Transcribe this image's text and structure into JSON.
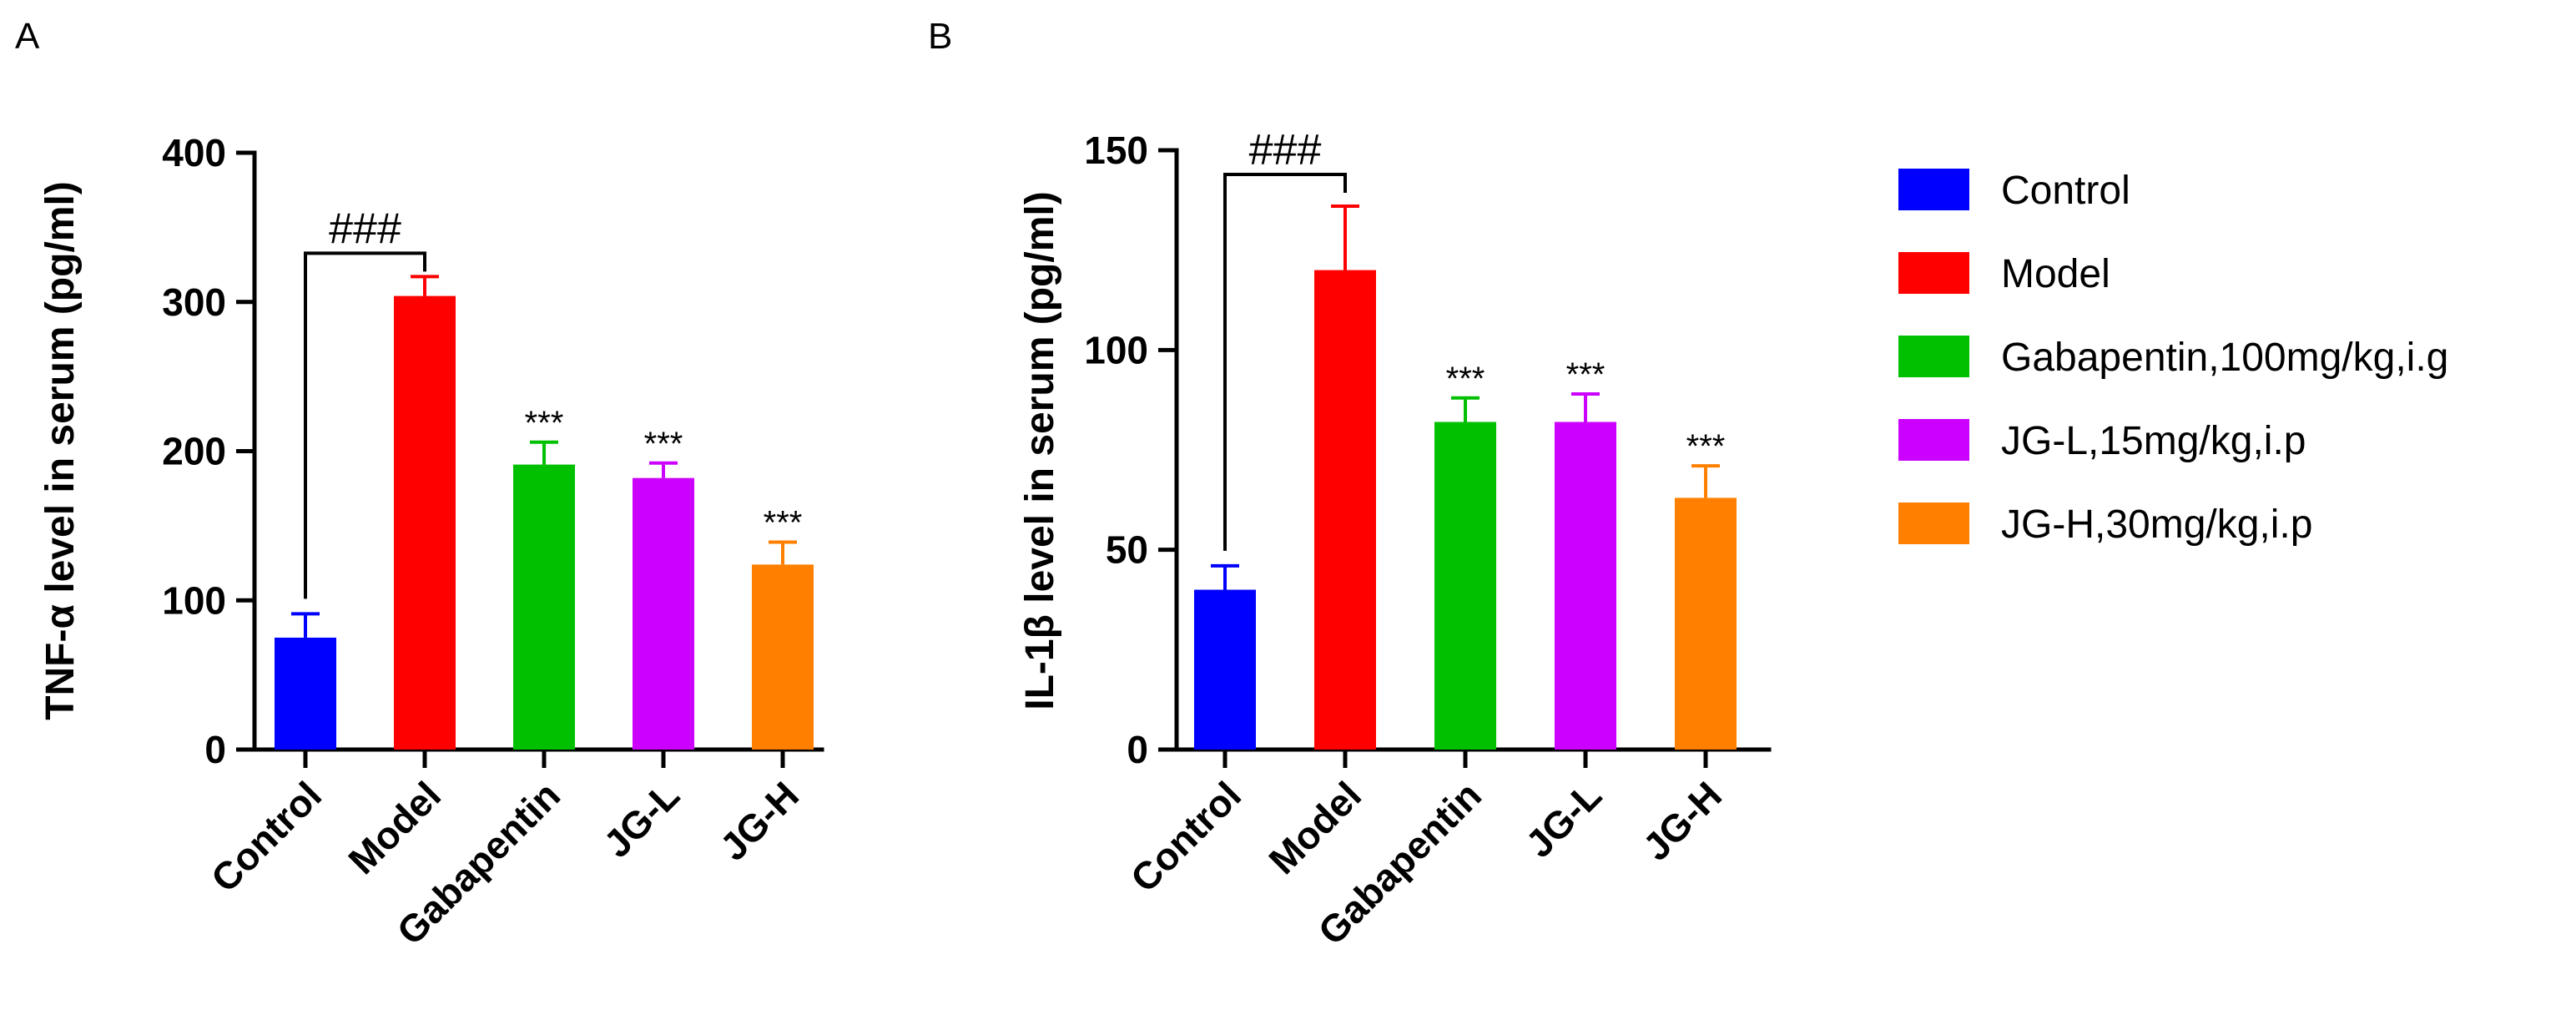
{
  "chart_data": [
    {
      "type": "bar",
      "panel": "A",
      "ylabel": "TNF-α level in serum (pg/ml)",
      "ylim": [
        0,
        400
      ],
      "yticks": [
        "0",
        "100",
        "200",
        "300",
        "400"
      ],
      "yticks_values": [
        0,
        100,
        200,
        300,
        400
      ],
      "categories": [
        "Control",
        "Model",
        "Gabapentin",
        "JG-L",
        "JG-H"
      ],
      "values": [
        75,
        304,
        191,
        182,
        124
      ],
      "errors": [
        16,
        13,
        15,
        10,
        15
      ],
      "annotations": [
        "",
        "",
        "***",
        "***",
        "***"
      ],
      "comparison": {
        "from": 0,
        "to": 1,
        "label": "###"
      },
      "colors": [
        "#0000ff",
        "#ff0000",
        "#00c000",
        "#cc00ff",
        "#ff8000"
      ]
    },
    {
      "type": "bar",
      "panel": "B",
      "ylabel": "IL-1β level in serum (pg/ml)",
      "ylim": [
        0,
        150
      ],
      "yticks": [
        "0",
        "50",
        "100",
        "150"
      ],
      "yticks_values": [
        0,
        50,
        100,
        150
      ],
      "categories": [
        "Control",
        "Model",
        "Gabapentin",
        "JG-L",
        "JG-H"
      ],
      "values": [
        40,
        120,
        82,
        82,
        63
      ],
      "errors": [
        6,
        16,
        6,
        7,
        8
      ],
      "annotations": [
        "",
        "",
        "***",
        "***",
        "***"
      ],
      "comparison": {
        "from": 0,
        "to": 1,
        "label": "###"
      },
      "colors": [
        "#0000ff",
        "#ff0000",
        "#00c000",
        "#cc00ff",
        "#ff8000"
      ]
    }
  ],
  "legend": {
    "placement": "right",
    "entries": [
      {
        "label": "Control",
        "color": "#0000ff"
      },
      {
        "label": "Model",
        "color": "#ff0000"
      },
      {
        "label": "Gabapentin,100mg/kg,i.g",
        "color": "#00c000"
      },
      {
        "label": "JG-L,15mg/kg,i.p",
        "color": "#cc00ff"
      },
      {
        "label": "JG-H,30mg/kg,i.p",
        "color": "#ff8000"
      }
    ]
  }
}
